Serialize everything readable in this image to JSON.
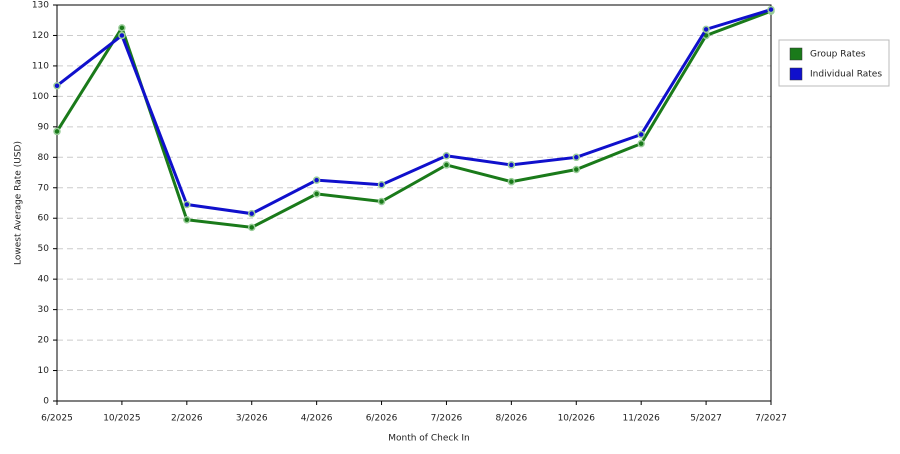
{
  "chart_data": {
    "type": "line",
    "x_label": "Month of Check In",
    "y_label": "Lowest Average Rate (USD)",
    "categories": [
      "6/2025",
      "10/2025",
      "2/2026",
      "3/2026",
      "4/2026",
      "6/2026",
      "7/2026",
      "8/2026",
      "10/2026",
      "11/2026",
      "5/2027",
      "7/2027"
    ],
    "series": [
      {
        "name": "Group Rates",
        "color": "#1a7a1a",
        "values": [
          88.5,
          122.5,
          59.5,
          57,
          68,
          65.5,
          77.5,
          72,
          76,
          84.5,
          120,
          128
        ]
      },
      {
        "name": "Individual Rates",
        "color": "#1010cc",
        "values": [
          103.5,
          120,
          64.5,
          61.5,
          72.5,
          71,
          80.5,
          77.5,
          80,
          87.5,
          122,
          128.5
        ]
      }
    ],
    "ylim": [
      0,
      130
    ],
    "yticks": [
      0,
      10,
      20,
      30,
      40,
      50,
      60,
      70,
      80,
      90,
      100,
      110,
      120,
      130
    ],
    "grid": true,
    "legend": "right"
  }
}
